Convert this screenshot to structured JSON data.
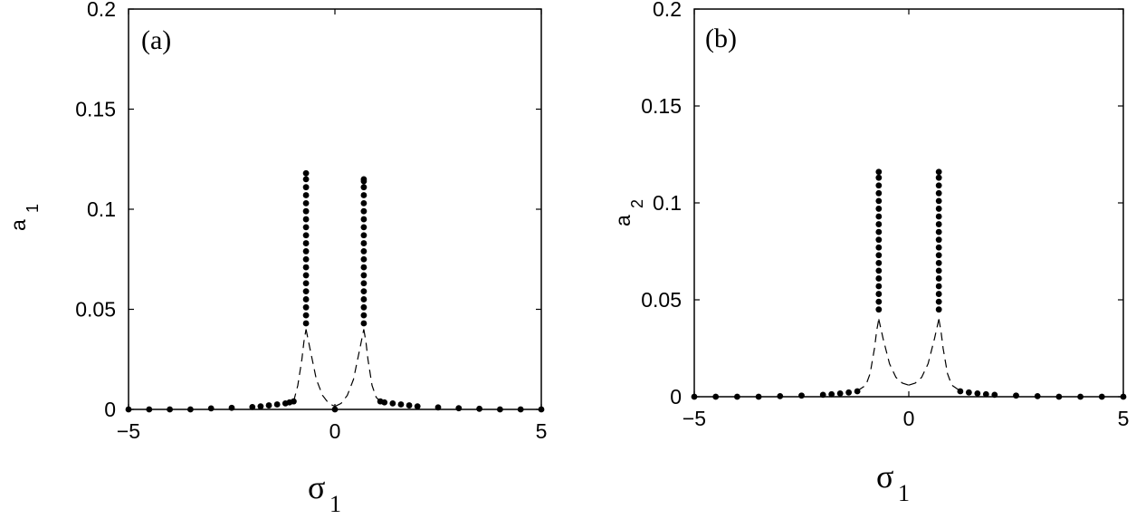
{
  "chart_data": [
    {
      "type": "scatter",
      "panel_label": "(a)",
      "xlabel": "σ",
      "xlabel_sub": "1",
      "ylabel": "a",
      "ylabel_sub": "1",
      "xlim": [
        -5,
        5
      ],
      "ylim": [
        0,
        0.2
      ],
      "xticks": [
        -5,
        0,
        5
      ],
      "xtick_labels": [
        "−5",
        "0",
        "5"
      ],
      "yticks": [
        0,
        0.05,
        0.1,
        0.15,
        0.2
      ],
      "ytick_labels": [
        "0",
        "0.05",
        "0.1",
        "0.15",
        "0.2"
      ],
      "grid": false,
      "series": [
        {
          "style": "stable",
          "color": "#000000",
          "x": [
            -5.0,
            -4.5,
            -4.0,
            -3.5,
            -3.0,
            -2.5,
            -2.0,
            -1.8,
            -1.6,
            -1.4,
            -1.2,
            -1.1,
            -1.0,
            -0.7,
            -0.7,
            -0.7,
            -0.7,
            -0.7,
            -0.7,
            -0.7,
            -0.7,
            -0.7,
            -0.7,
            -0.7,
            -0.7,
            -0.7,
            -0.7,
            -0.7,
            -0.7,
            -0.7,
            -0.7,
            -0.7,
            -0.7,
            0.0,
            0.7,
            0.7,
            0.7,
            0.7,
            0.7,
            0.7,
            0.7,
            0.7,
            0.7,
            0.7,
            0.7,
            0.7,
            0.7,
            0.7,
            0.7,
            0.7,
            0.7,
            0.7,
            0.7,
            0.7,
            1.1,
            1.2,
            1.4,
            1.6,
            1.8,
            2.0,
            2.5,
            3.0,
            3.5,
            4.0,
            4.5,
            5.0
          ],
          "y": [
            0.0,
            0.0,
            0.0,
            0.0,
            0.0005,
            0.0008,
            0.0012,
            0.0015,
            0.002,
            0.0025,
            0.003,
            0.0035,
            0.004,
            0.043,
            0.047,
            0.051,
            0.055,
            0.059,
            0.063,
            0.067,
            0.071,
            0.075,
            0.079,
            0.083,
            0.087,
            0.091,
            0.095,
            0.099,
            0.103,
            0.107,
            0.111,
            0.115,
            0.118,
            0.0,
            0.043,
            0.047,
            0.051,
            0.055,
            0.059,
            0.063,
            0.067,
            0.071,
            0.075,
            0.079,
            0.083,
            0.087,
            0.091,
            0.095,
            0.099,
            0.103,
            0.107,
            0.111,
            0.114,
            0.115,
            0.004,
            0.0035,
            0.003,
            0.0025,
            0.002,
            0.0015,
            0.001,
            0.0006,
            0.0003,
            0.0,
            0.0,
            0.0
          ]
        },
        {
          "style": "unstable",
          "color": "#000000",
          "segments": [
            {
              "x": [
                -1.0,
                -0.9,
                -0.8,
                -0.75,
                -0.7
              ],
              "y": [
                0.004,
                0.012,
                0.025,
                0.034,
                0.04
              ]
            },
            {
              "x": [
                -0.7,
                -0.6,
                -0.45,
                -0.3,
                -0.15,
                0.0
              ],
              "y": [
                0.04,
                0.03,
                0.015,
                0.007,
                0.003,
                0.0015
              ]
            },
            {
              "x": [
                0.0,
                0.15,
                0.3,
                0.45,
                0.6,
                0.7
              ],
              "y": [
                0.0015,
                0.003,
                0.007,
                0.015,
                0.03,
                0.04
              ]
            },
            {
              "x": [
                0.7,
                0.75,
                0.8,
                0.9,
                1.0,
                1.1
              ],
              "y": [
                0.04,
                0.034,
                0.025,
                0.012,
                0.006,
                0.004
              ]
            }
          ]
        }
      ]
    },
    {
      "type": "scatter",
      "panel_label": "(b)",
      "xlabel": "σ",
      "xlabel_sub": "1",
      "ylabel": "a",
      "ylabel_sub": "2",
      "xlim": [
        -5,
        5
      ],
      "ylim": [
        0,
        0.2
      ],
      "xticks": [
        -5,
        0,
        5
      ],
      "xtick_labels": [
        "−5",
        "0",
        "5"
      ],
      "yticks": [
        0,
        0.05,
        0.1,
        0.15,
        0.2
      ],
      "ytick_labels": [
        "0",
        "0.05",
        "0.1",
        "0.15",
        "0.2"
      ],
      "grid": false,
      "series": [
        {
          "style": "stable",
          "color": "#000000",
          "x": [
            -5.0,
            -4.5,
            -4.0,
            -3.5,
            -3.0,
            -2.5,
            -2.0,
            -1.8,
            -1.6,
            -1.4,
            -1.2,
            -0.7,
            -0.7,
            -0.7,
            -0.7,
            -0.7,
            -0.7,
            -0.7,
            -0.7,
            -0.7,
            -0.7,
            -0.7,
            -0.7,
            -0.7,
            -0.7,
            -0.7,
            -0.7,
            -0.7,
            -0.7,
            -0.7,
            0.7,
            0.7,
            0.7,
            0.7,
            0.7,
            0.7,
            0.7,
            0.7,
            0.7,
            0.7,
            0.7,
            0.7,
            0.7,
            0.7,
            0.7,
            0.7,
            0.7,
            0.7,
            0.7,
            1.2,
            1.4,
            1.6,
            1.8,
            2.0,
            2.5,
            3.0,
            3.5,
            4.0,
            4.5,
            5.0
          ],
          "y": [
            0.0,
            0.0,
            0.0,
            0.0,
            0.0003,
            0.0006,
            0.001,
            0.0013,
            0.0017,
            0.0022,
            0.0028,
            0.045,
            0.049,
            0.053,
            0.057,
            0.061,
            0.065,
            0.069,
            0.073,
            0.077,
            0.081,
            0.085,
            0.089,
            0.093,
            0.097,
            0.101,
            0.105,
            0.109,
            0.113,
            0.116,
            0.045,
            0.049,
            0.053,
            0.057,
            0.061,
            0.065,
            0.069,
            0.073,
            0.077,
            0.081,
            0.085,
            0.089,
            0.093,
            0.097,
            0.101,
            0.105,
            0.109,
            0.113,
            0.116,
            0.0028,
            0.0022,
            0.0017,
            0.0013,
            0.001,
            0.0006,
            0.0003,
            0.0,
            0.0,
            0.0,
            0.0
          ]
        },
        {
          "style": "unstable",
          "color": "#000000",
          "segments": [
            {
              "x": [
                -1.2,
                -1.0,
                -0.9,
                -0.8,
                -0.75,
                -0.7
              ],
              "y": [
                0.003,
                0.006,
                0.012,
                0.025,
                0.034,
                0.04
              ]
            },
            {
              "x": [
                -0.7,
                -0.6,
                -0.45,
                -0.3,
                -0.15,
                0.0
              ],
              "y": [
                0.04,
                0.03,
                0.017,
                0.01,
                0.007,
                0.006
              ]
            },
            {
              "x": [
                0.0,
                0.15,
                0.3,
                0.45,
                0.6,
                0.7
              ],
              "y": [
                0.006,
                0.007,
                0.01,
                0.017,
                0.03,
                0.04
              ]
            },
            {
              "x": [
                0.7,
                0.75,
                0.8,
                0.9,
                1.0,
                1.2
              ],
              "y": [
                0.04,
                0.034,
                0.025,
                0.012,
                0.006,
                0.003
              ]
            }
          ]
        }
      ]
    }
  ]
}
